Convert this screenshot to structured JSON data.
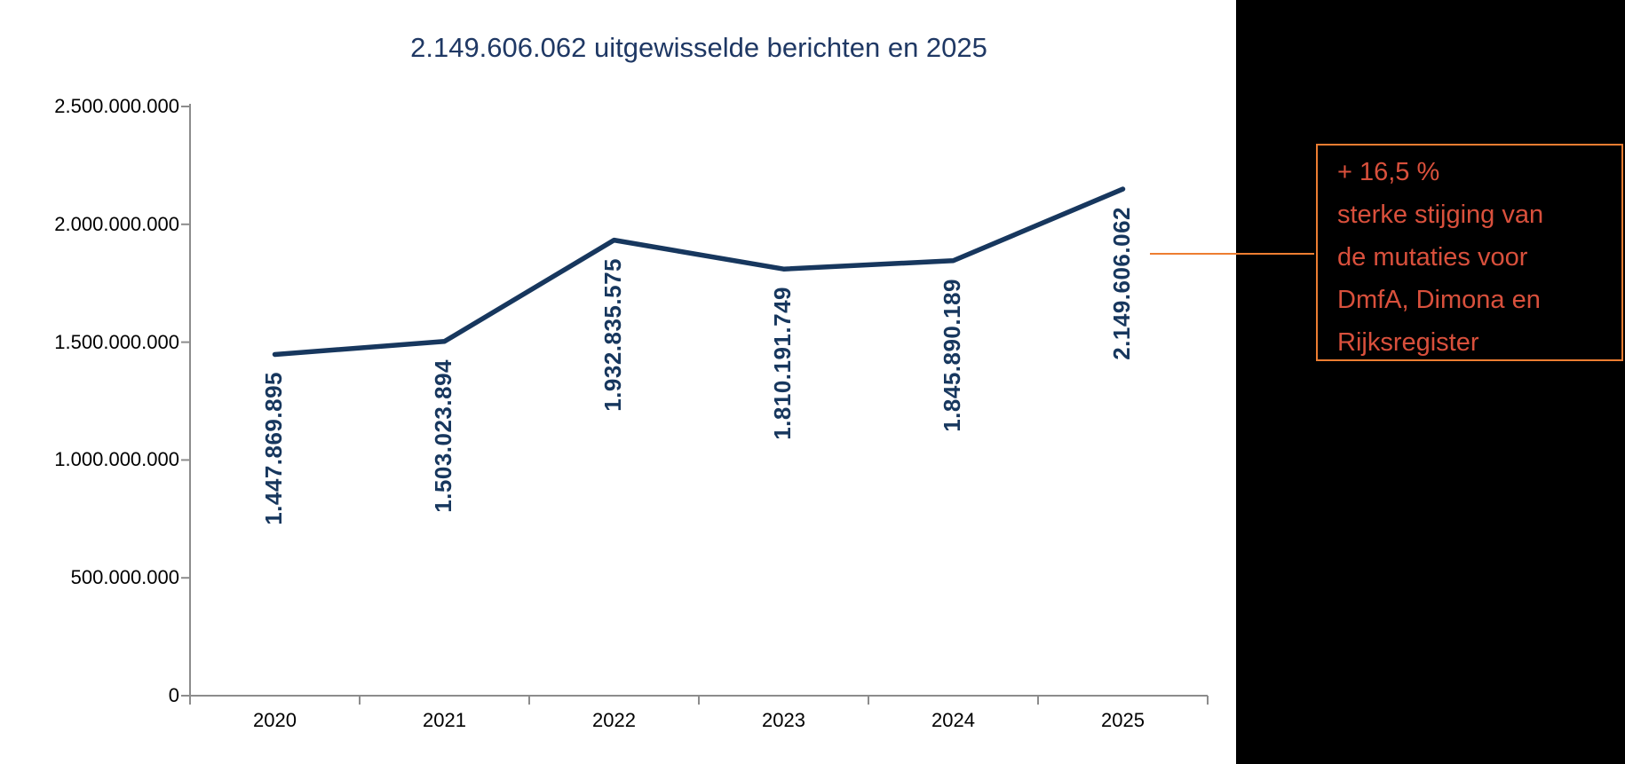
{
  "title": "2.149.606.062 uitgewisselde berichten en 2025",
  "chart_data": {
    "type": "line",
    "title": "2.149.606.062 uitgewisselde berichten en 2025",
    "categories": [
      "2020",
      "2021",
      "2022",
      "2023",
      "2024",
      "2025"
    ],
    "series": [
      {
        "name": "uitgewisselde berichten",
        "values": [
          1447869895,
          1503023894,
          1932835575,
          1810191749,
          1845890189,
          2149606062
        ],
        "data_labels": [
          "1.447.869.895",
          "1.503.023.894",
          "1.932.835.575",
          "1.810.191.749",
          "1.845.890.189",
          "2.149.606.062"
        ]
      }
    ],
    "xlabel": "",
    "ylabel": "",
    "ylim": [
      0,
      2500000000
    ],
    "y_tick_labels": [
      "0",
      "500.000.000",
      "1.000.000.000",
      "1.500.000.000",
      "2.000.000.000",
      "2.500.000.000"
    ],
    "y_tick_values": [
      0,
      500000000,
      1000000000,
      1500000000,
      2000000000,
      2500000000
    ],
    "grid": false,
    "legend": false
  },
  "annotation": {
    "lines": [
      "+ 16,5 %",
      "sterke stijging van",
      "de mutaties voor",
      "DmfA, Dimona en",
      "Rijksregister"
    ]
  },
  "colors": {
    "line": "#17375E",
    "data_label": "#17375E",
    "title": "#1F3864",
    "axis": "#8C8C8C",
    "annotation_text": "#D9503C",
    "annotation_border": "#ED7D31",
    "connector": "#ED7D31",
    "side_panel": "#000000"
  }
}
